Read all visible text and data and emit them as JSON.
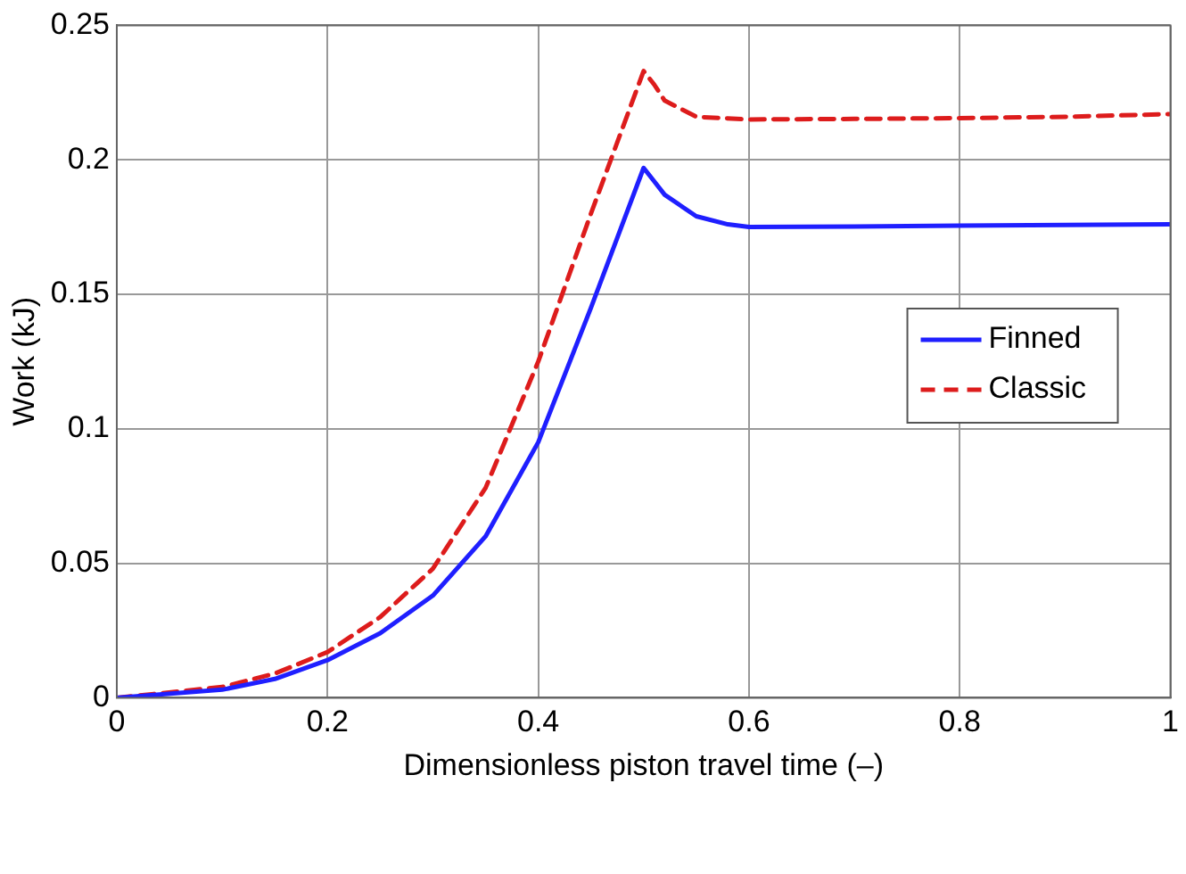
{
  "chart_data": {
    "type": "line",
    "xlabel": "Dimensionless piston travel time (–)",
    "ylabel": "Work (kJ)",
    "xlim": [
      0,
      1
    ],
    "ylim": [
      0,
      0.25
    ],
    "xticks": [
      0,
      0.2,
      0.4,
      0.6,
      0.8,
      1
    ],
    "yticks": [
      0,
      0.05,
      0.1,
      0.15,
      0.2,
      0.25
    ],
    "grid": true,
    "legend": "right",
    "marker": "none",
    "series": [
      {
        "name": "Finned",
        "color": "#1f1fff",
        "line_style": "solid",
        "x": [
          0,
          0.1,
          0.15,
          0.2,
          0.25,
          0.3,
          0.35,
          0.4,
          0.45,
          0.5,
          0.51,
          0.52,
          0.55,
          0.58,
          0.6,
          0.7,
          0.8,
          0.9,
          1
        ],
        "values": [
          0,
          0.003,
          0.007,
          0.014,
          0.024,
          0.038,
          0.06,
          0.095,
          0.145,
          0.197,
          0.192,
          0.187,
          0.179,
          0.176,
          0.175,
          0.1752,
          0.1755,
          0.1758,
          0.176
        ]
      },
      {
        "name": "Classic",
        "color": "#dd1c1c",
        "line_style": "dashed",
        "x": [
          0,
          0.1,
          0.15,
          0.2,
          0.25,
          0.3,
          0.35,
          0.4,
          0.45,
          0.5,
          0.51,
          0.52,
          0.55,
          0.6,
          0.7,
          0.8,
          0.9,
          1
        ],
        "values": [
          0,
          0.004,
          0.009,
          0.017,
          0.03,
          0.048,
          0.078,
          0.125,
          0.18,
          0.233,
          0.228,
          0.222,
          0.216,
          0.215,
          0.2152,
          0.2155,
          0.216,
          0.217
        ]
      }
    ]
  }
}
